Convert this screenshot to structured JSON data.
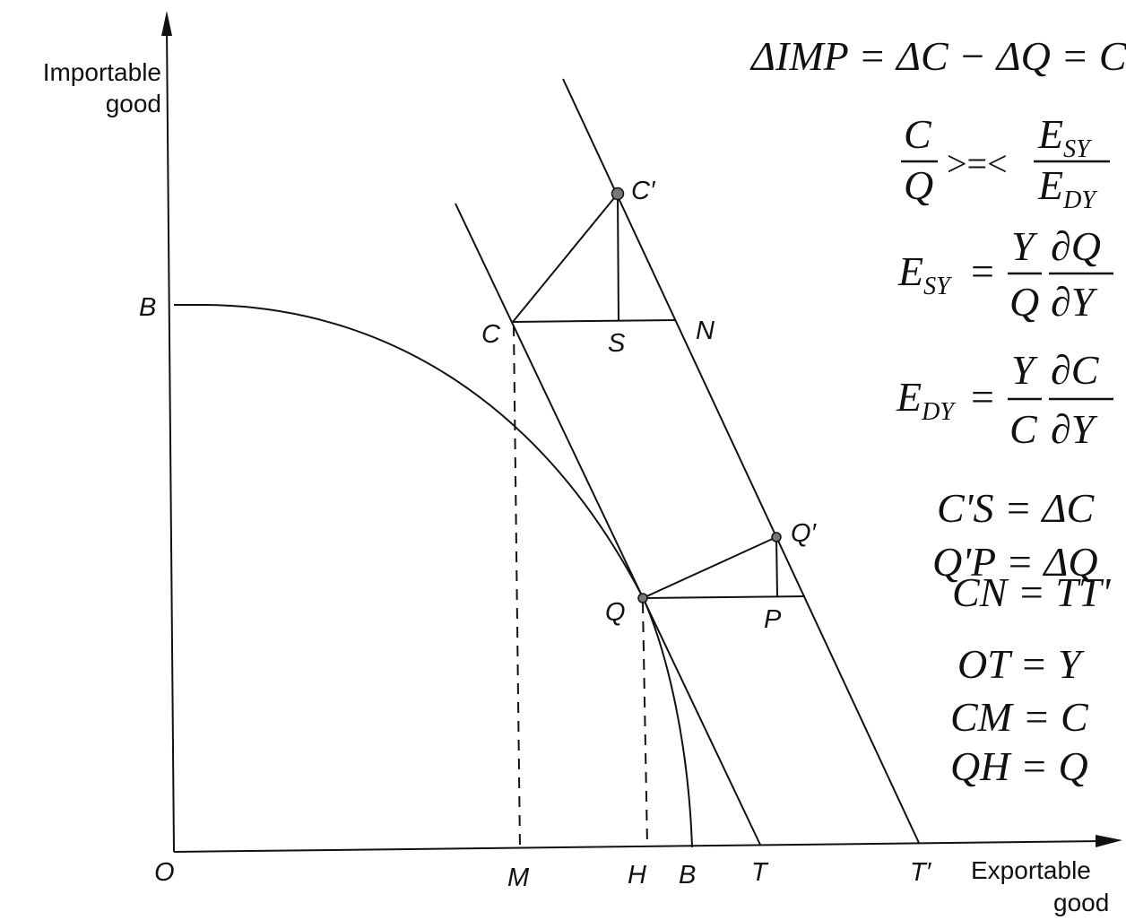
{
  "axes": {
    "y_label_line1": "Importable",
    "y_label_line2": "good",
    "x_label_line1": "Exportable",
    "x_label_line2": "good",
    "origin": "O"
  },
  "points": {
    "B_top": "B",
    "B_bottom": "B",
    "C": "C",
    "C_prime": "C′",
    "S": "S",
    "N": "N",
    "Q": "Q",
    "Q_prime": "Q′",
    "P": "P",
    "M": "M",
    "H": "H",
    "T": "T",
    "T_prime": "T′"
  },
  "equations": {
    "delta_imp": "ΔIMP = ΔC − ΔQ = C",
    "ratio_num": "C",
    "ratio_den": "Q",
    "compare": ">=<",
    "esy_sym": "E",
    "esy_sub": "SY",
    "edy_sym": "E",
    "edy_sub": "DY",
    "esy_def_lhs_sym": "E",
    "esy_def_lhs_sub": "SY",
    "esy_def_eq": "=",
    "esy_def_f1_num": "Y",
    "esy_def_f1_den": "Q",
    "esy_def_f2_num": "∂Q",
    "esy_def_f2_den": "∂Y",
    "edy_def_lhs_sym": "E",
    "edy_def_lhs_sub": "DY",
    "edy_def_eq": "=",
    "edy_def_f1_num": "Y",
    "edy_def_f1_den": "C",
    "edy_def_f2_num": "∂C",
    "edy_def_f2_den": "∂Y",
    "defs": [
      "C'S = ΔC",
      "Q'P = ΔQ",
      "CN = TT'",
      "OT = Y",
      "CM = C",
      "QH = Q"
    ]
  }
}
